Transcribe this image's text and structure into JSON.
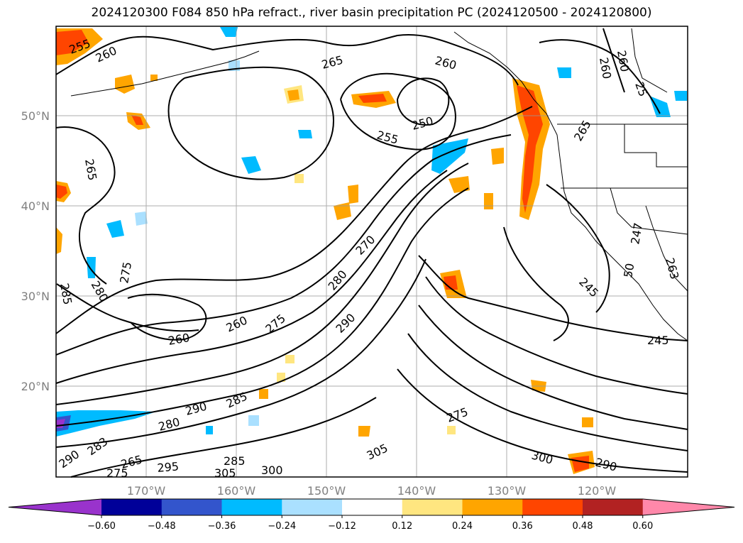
{
  "title": "2024120300 F084 850 hPa refract., river basin precipitation PC (2024120500 - 2024120800)",
  "map": {
    "lon_range": [
      -180,
      -110
    ],
    "lat_range": [
      10,
      60
    ],
    "lat_labels": [
      "50°N",
      "40°N",
      "30°N",
      "20°N"
    ],
    "lon_labels": [
      "170°W",
      "160°W",
      "150°W",
      "140°W",
      "130°W",
      "120°W"
    ],
    "contour_labels": [
      "255",
      "260",
      "265",
      "260",
      "250",
      "255",
      "265",
      "260",
      "260",
      "25",
      "265",
      "275",
      "285",
      "280",
      "270",
      "280",
      "290",
      "275",
      "260",
      "260",
      "290",
      "285",
      "280",
      "290",
      "283",
      "265",
      "275",
      "295",
      "285",
      "305",
      "300",
      "305",
      "275",
      "300",
      "290",
      "245",
      "247",
      "263",
      "50",
      "245"
    ]
  },
  "colorbar": {
    "tick_labels": [
      "−0.60",
      "−0.48",
      "−0.36",
      "−0.24",
      "−0.12",
      "0.12",
      "0.24",
      "0.36",
      "0.48",
      "0.60"
    ],
    "colors": [
      "#9933cc",
      "#000099",
      "#3355cc",
      "#00bbff",
      "#aae0ff",
      "#ffffff",
      "#ffe680",
      "#ffa500",
      "#ff4500",
      "#b22222",
      "#ff88aa"
    ]
  }
}
